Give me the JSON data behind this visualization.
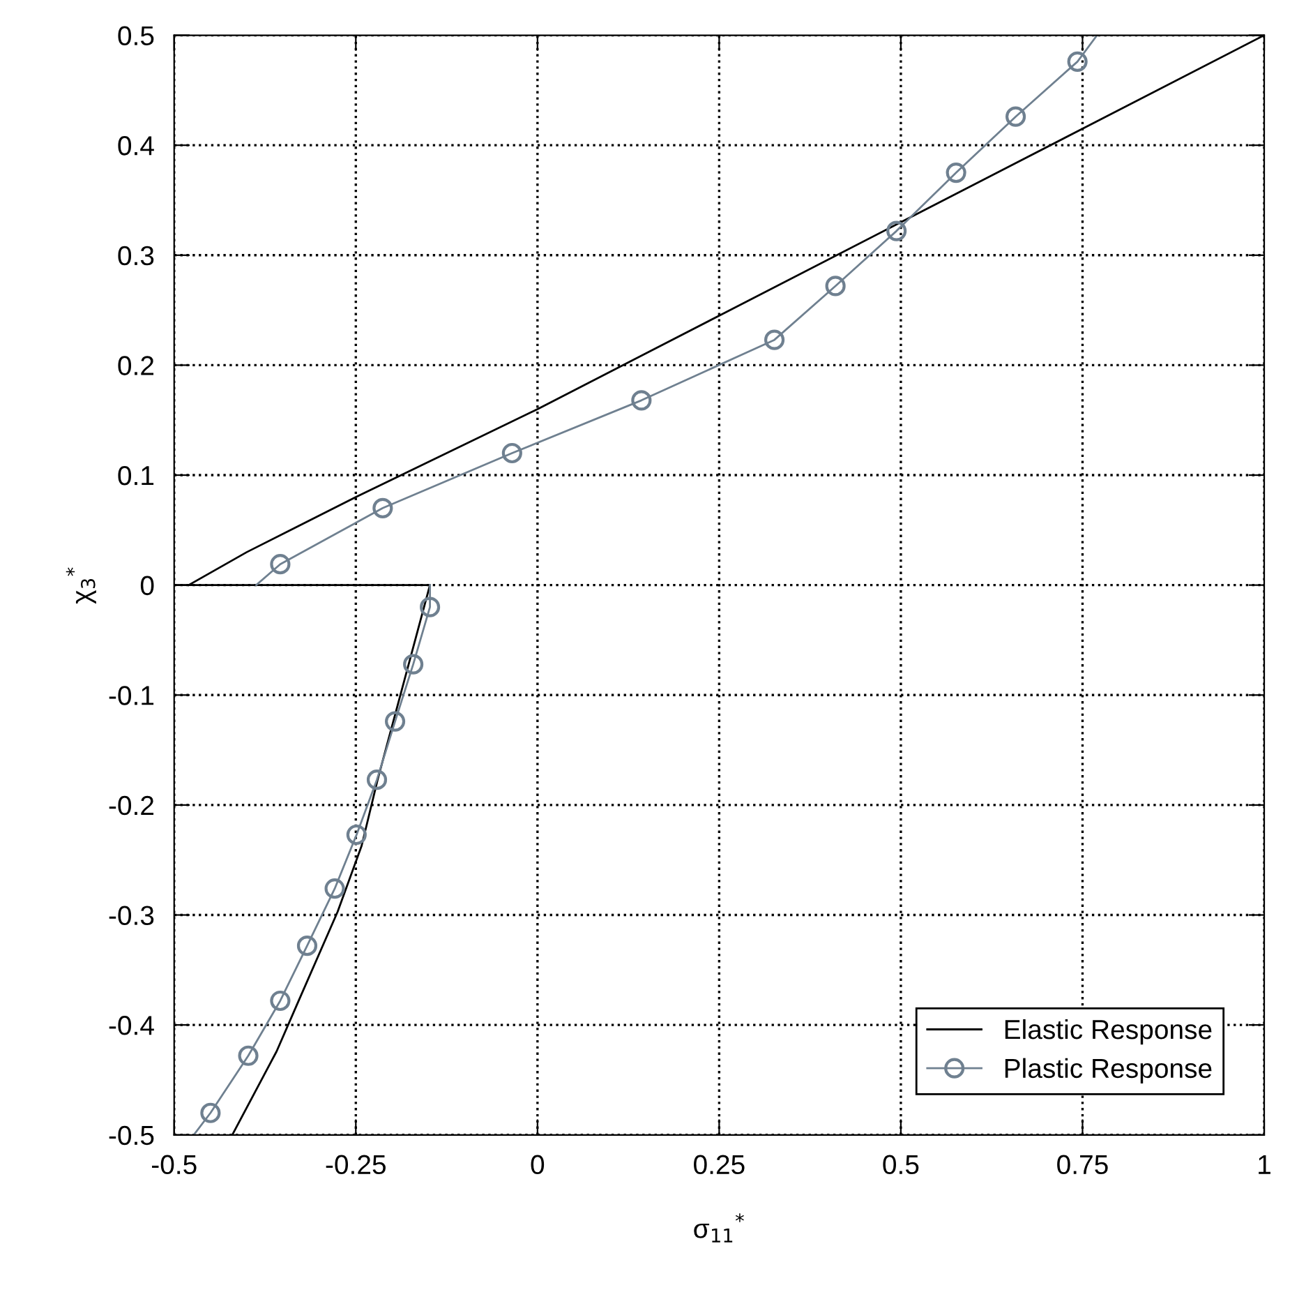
{
  "chart_data": {
    "type": "line",
    "xlabel": "σ$_{11}$$^{*}$",
    "ylabel": "χ$_{3}$$^{*}$",
    "xlim": [
      -0.5,
      1
    ],
    "ylim": [
      -0.5,
      0.5
    ],
    "xticks": [
      -0.5,
      -0.25,
      0,
      0.25,
      0.5,
      0.75,
      1
    ],
    "yticks": [
      -0.5,
      -0.4,
      -0.3,
      -0.2,
      -0.1,
      0,
      0.1,
      0.2,
      0.3,
      0.4,
      0.5
    ],
    "grid": true,
    "legend": "bottom right",
    "series": [
      {
        "name": "Elastic Response",
        "color": "#000000",
        "marker": "none",
        "x": [
          -0.48,
          -0.4,
          -0.25,
          0,
          0.25,
          0.5,
          0.75,
          1,
          null,
          -0.5,
          -0.148,
          -0.22,
          -0.242,
          -0.275,
          -0.33,
          -0.359,
          -0.42
        ],
        "values": [
          0,
          0.03,
          0.08,
          0.16,
          0.245,
          0.33,
          0.415,
          0.5,
          null,
          0,
          0,
          -0.177,
          -0.237,
          -0.297,
          -0.38,
          -0.424,
          -0.5
        ]
      },
      {
        "name": "Plastic Response",
        "color": "#6f8090",
        "marker": "circle",
        "x": [
          -0.387,
          -0.354,
          -0.213,
          -0.035,
          0.143,
          0.326,
          0.41,
          0.494,
          0.576,
          0.658,
          0.743,
          0.77,
          null,
          -0.148,
          -0.148,
          -0.171,
          -0.196,
          -0.221,
          -0.249,
          -0.279,
          -0.317,
          -0.354,
          -0.398,
          -0.45,
          -0.473
        ],
        "values": [
          0,
          0.019,
          0.07,
          0.12,
          0.168,
          0.223,
          0.272,
          0.322,
          0.375,
          0.426,
          0.476,
          0.5,
          null,
          0,
          -0.02,
          -0.072,
          -0.124,
          -0.177,
          -0.227,
          -0.276,
          -0.328,
          -0.378,
          -0.428,
          -0.48,
          -0.5
        ]
      }
    ]
  }
}
